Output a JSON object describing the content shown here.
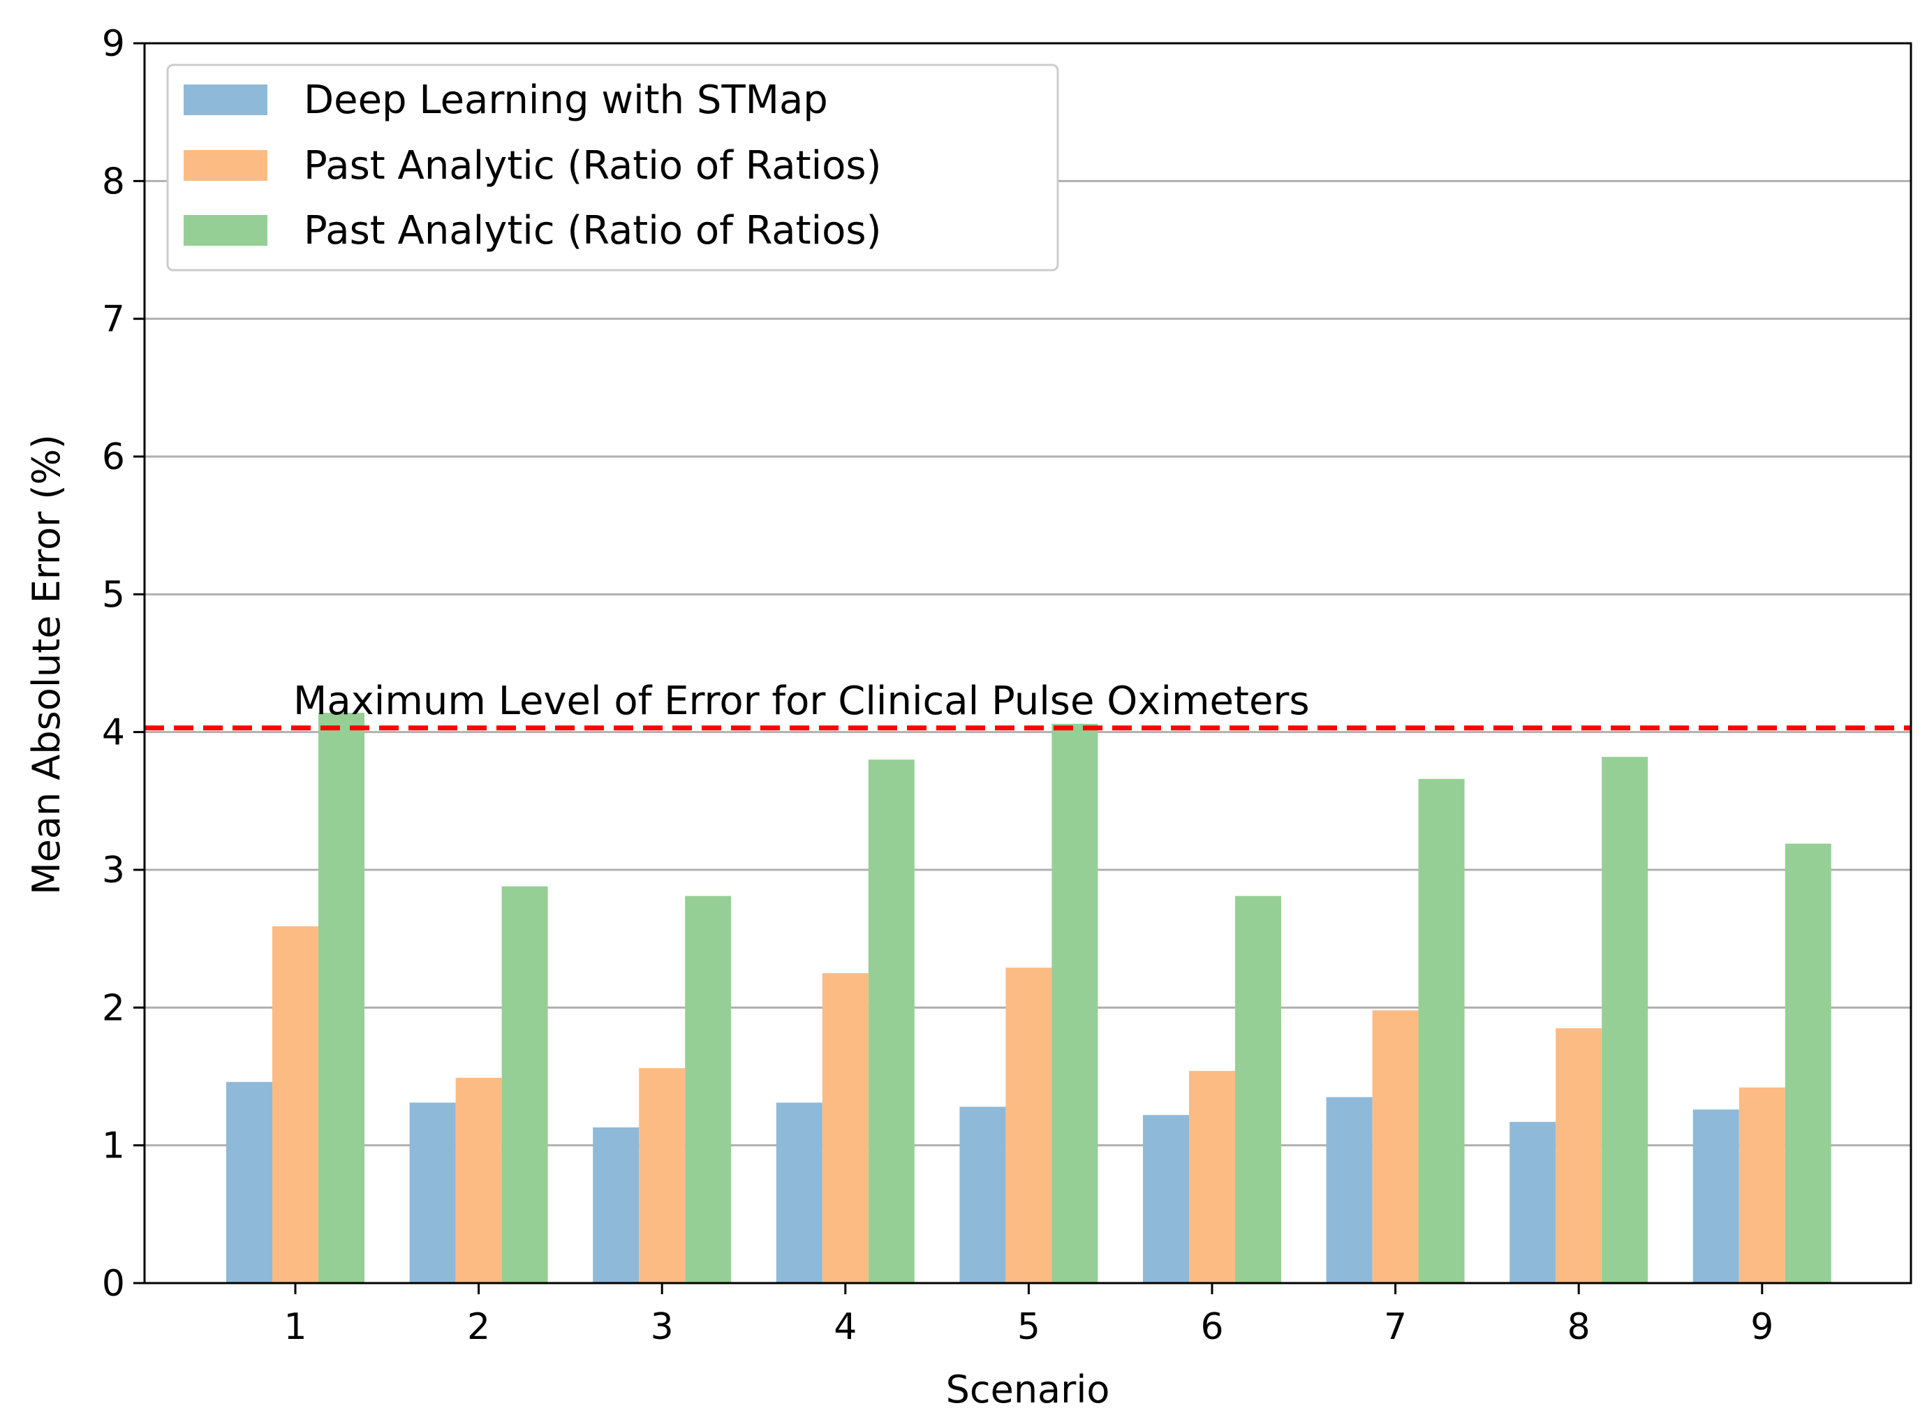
{
  "chart_data": {
    "type": "bar",
    "title": "",
    "xlabel": "Scenario",
    "ylabel": "Mean Absolute Error (%)",
    "ylim": [
      0,
      9
    ],
    "yticks": [
      0,
      1,
      2,
      3,
      4,
      5,
      6,
      7,
      8,
      9
    ],
    "categories": [
      "1",
      "2",
      "3",
      "4",
      "5",
      "6",
      "7",
      "8",
      "9"
    ],
    "grid": "horizontal",
    "legend_position": "top-left",
    "series": [
      {
        "name": "Deep Learning with STMap",
        "color": "#8fb9d9",
        "values": [
          1.46,
          1.31,
          1.13,
          1.31,
          1.28,
          1.22,
          1.35,
          1.17,
          1.26
        ]
      },
      {
        "name": "Past Analytic (Ratio of Ratios)",
        "color": "#fdbb84",
        "values": [
          2.59,
          1.49,
          1.56,
          2.25,
          2.29,
          1.54,
          1.98,
          1.85,
          1.42
        ]
      },
      {
        "name": "Past Analytic (Ratio of Ratios)",
        "color": "#95cf95",
        "values": [
          4.14,
          2.88,
          2.81,
          3.8,
          4.06,
          2.81,
          3.66,
          3.82,
          3.19
        ]
      }
    ],
    "reference_line": {
      "value": 4.03,
      "color": "#ff0000",
      "label": "Maximum Level of Error for Clinical Pulse Oximeters"
    }
  }
}
